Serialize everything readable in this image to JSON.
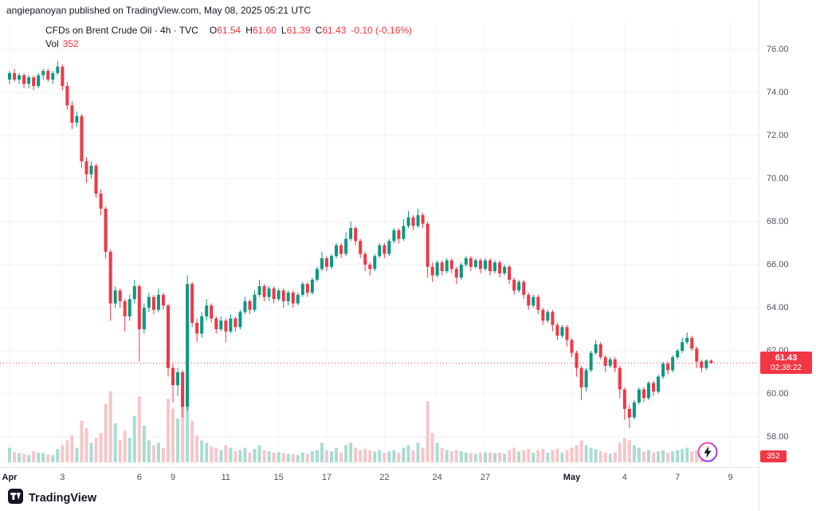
{
  "attribution": "angiepanoyan published on TradingView.com, May 08, 2025 05:21 UTC",
  "legend": {
    "title": "CFDs on Brent Crude Oil · 4h · TVC",
    "o_label": "O",
    "o": "61.54",
    "h_label": "H",
    "h": "61.60",
    "l_label": "L",
    "l": "61.39",
    "c_label": "C",
    "c": "61.43",
    "change": "-0.10 (-0.16%)",
    "vol_label": "Vol",
    "vol_value": "352"
  },
  "price_axis": {
    "labels": [
      "76.00",
      "74.00",
      "72.00",
      "70.00",
      "68.00",
      "66.00",
      "64.00",
      "62.00",
      "60.00",
      "58.00"
    ],
    "last_price": "61.43",
    "countdown": "02:38:22",
    "volume_badge": "352"
  },
  "time_axis": {
    "labels": [
      {
        "text": "Apr",
        "index": 0,
        "bold": true
      },
      {
        "text": "3",
        "index": 11,
        "bold": false
      },
      {
        "text": "6",
        "index": 27,
        "bold": false
      },
      {
        "text": "9",
        "index": 34,
        "bold": false
      },
      {
        "text": "11",
        "index": 45,
        "bold": false
      },
      {
        "text": "15",
        "index": 56,
        "bold": false
      },
      {
        "text": "17",
        "index": 66,
        "bold": false
      },
      {
        "text": "22",
        "index": 78,
        "bold": false
      },
      {
        "text": "24",
        "index": 89,
        "bold": false
      },
      {
        "text": "27",
        "index": 99,
        "bold": false
      },
      {
        "text": "May",
        "index": 117,
        "bold": true
      },
      {
        "text": "4",
        "index": 128,
        "bold": false
      },
      {
        "text": "7",
        "index": 139,
        "bold": false
      },
      {
        "text": "9",
        "index": 150,
        "bold": false
      }
    ]
  },
  "footer": {
    "brand": "TradingView"
  },
  "colors": {
    "up": "#089981",
    "down": "#F23645",
    "vol_up": "#aadcd3",
    "vol_down": "#f6c6ca",
    "grid": "#eef1f6",
    "grid_v": "#f3f5f9",
    "axis_text": "#50535e",
    "text": "#131722",
    "badge_red": "#F23645"
  },
  "chart_data": {
    "type": "candlestick",
    "symbol": "CFDs on Brent Crude Oil",
    "interval": "4h",
    "exchange": "TVC",
    "title": "CFDs on Brent Crude Oil · 4h · TVC",
    "ylim": [
      57.0,
      76.8
    ],
    "price_gridlines": [
      58,
      60,
      62,
      64,
      66,
      68,
      70,
      72,
      74,
      76
    ],
    "last_price": 61.43,
    "last_ohlc": {
      "o": 61.54,
      "h": 61.6,
      "l": 61.39,
      "c": 61.43
    },
    "change": -0.1,
    "change_pct": -0.16,
    "last_volume": 352,
    "vol_max": 3000,
    "candles_format": [
      "open",
      "high",
      "low",
      "close",
      "volume"
    ],
    "candles": [
      [
        74.6,
        75.0,
        74.4,
        74.9,
        600
      ],
      [
        74.9,
        75.1,
        74.5,
        74.6,
        420
      ],
      [
        74.6,
        74.9,
        74.4,
        74.8,
        380
      ],
      [
        74.8,
        74.9,
        74.2,
        74.4,
        350
      ],
      [
        74.4,
        74.8,
        74.2,
        74.7,
        300
      ],
      [
        74.7,
        74.8,
        74.1,
        74.3,
        450
      ],
      [
        74.3,
        74.9,
        74.2,
        74.8,
        400
      ],
      [
        74.8,
        75.1,
        74.6,
        75.0,
        380
      ],
      [
        75.0,
        75.1,
        74.5,
        74.6,
        320
      ],
      [
        74.6,
        75.0,
        74.4,
        74.9,
        300
      ],
      [
        74.9,
        75.45,
        74.8,
        75.2,
        550
      ],
      [
        75.2,
        75.3,
        74.1,
        74.3,
        700
      ],
      [
        74.3,
        74.5,
        73.2,
        73.4,
        900
      ],
      [
        73.4,
        73.6,
        72.3,
        72.6,
        1100
      ],
      [
        72.6,
        73.1,
        72.4,
        72.9,
        600
      ],
      [
        72.9,
        73.0,
        70.5,
        70.8,
        1700
      ],
      [
        70.8,
        71.0,
        69.8,
        70.2,
        1400
      ],
      [
        70.2,
        70.8,
        70.0,
        70.6,
        800
      ],
      [
        70.6,
        70.7,
        69.1,
        69.3,
        1000
      ],
      [
        69.3,
        69.5,
        68.3,
        68.6,
        1200
      ],
      [
        68.6,
        68.7,
        66.3,
        66.6,
        2400
      ],
      [
        66.6,
        66.7,
        63.4,
        64.2,
        2900
      ],
      [
        64.2,
        65.0,
        64.0,
        64.8,
        1600
      ],
      [
        64.8,
        64.9,
        64.0,
        64.3,
        900
      ],
      [
        64.3,
        64.4,
        62.9,
        63.6,
        1300
      ],
      [
        63.6,
        64.6,
        63.4,
        64.4,
        1000
      ],
      [
        64.4,
        65.3,
        64.2,
        65.0,
        1900
      ],
      [
        65.0,
        65.1,
        61.5,
        63.0,
        2700
      ],
      [
        63.0,
        64.2,
        62.8,
        64.0,
        1500
      ],
      [
        64.0,
        64.7,
        63.8,
        64.5,
        900
      ],
      [
        64.5,
        64.6,
        63.7,
        63.9,
        700
      ],
      [
        63.9,
        64.9,
        63.8,
        64.6,
        800
      ],
      [
        64.6,
        64.7,
        63.9,
        64.1,
        600
      ],
      [
        64.1,
        64.2,
        60.8,
        61.2,
        2600
      ],
      [
        61.2,
        61.4,
        59.6,
        60.4,
        2200
      ],
      [
        60.4,
        61.2,
        59.9,
        61.0,
        1800
      ],
      [
        61.0,
        61.1,
        58.9,
        59.4,
        2500
      ],
      [
        59.4,
        65.5,
        59.2,
        65.1,
        3000
      ],
      [
        65.1,
        65.2,
        63.1,
        63.3,
        1700
      ],
      [
        63.3,
        63.5,
        62.4,
        62.8,
        1100
      ],
      [
        62.8,
        63.8,
        62.6,
        63.6,
        900
      ],
      [
        63.6,
        64.4,
        63.4,
        64.1,
        800
      ],
      [
        64.1,
        64.2,
        63.3,
        63.5,
        650
      ],
      [
        63.5,
        63.6,
        62.8,
        63.0,
        600
      ],
      [
        63.0,
        63.6,
        62.9,
        63.4,
        500
      ],
      [
        63.4,
        63.5,
        62.4,
        62.9,
        700
      ],
      [
        62.9,
        63.7,
        62.8,
        63.5,
        600
      ],
      [
        63.5,
        63.6,
        62.9,
        63.1,
        450
      ],
      [
        63.1,
        63.9,
        63.0,
        63.8,
        500
      ],
      [
        63.8,
        64.5,
        63.7,
        64.3,
        600
      ],
      [
        64.3,
        64.4,
        63.7,
        63.9,
        400
      ],
      [
        63.9,
        64.8,
        63.8,
        64.6,
        550
      ],
      [
        64.6,
        65.3,
        64.5,
        65.0,
        700
      ],
      [
        65.0,
        65.1,
        64.3,
        64.5,
        500
      ],
      [
        64.5,
        65.0,
        64.3,
        64.9,
        450
      ],
      [
        64.9,
        65.0,
        64.2,
        64.4,
        400
      ],
      [
        64.4,
        64.9,
        64.3,
        64.8,
        420
      ],
      [
        64.8,
        64.9,
        64.0,
        64.3,
        380
      ],
      [
        64.3,
        64.8,
        64.1,
        64.7,
        350
      ],
      [
        64.7,
        64.8,
        64.0,
        64.2,
        330
      ],
      [
        64.2,
        64.7,
        64.1,
        64.6,
        300
      ],
      [
        64.6,
        65.2,
        64.5,
        65.1,
        400
      ],
      [
        65.1,
        65.2,
        64.5,
        64.7,
        350
      ],
      [
        64.7,
        65.4,
        64.6,
        65.3,
        450
      ],
      [
        65.3,
        65.9,
        65.2,
        65.8,
        500
      ],
      [
        65.8,
        66.6,
        65.7,
        66.3,
        800
      ],
      [
        66.3,
        66.4,
        65.7,
        65.9,
        500
      ],
      [
        65.9,
        66.5,
        65.8,
        66.4,
        450
      ],
      [
        66.4,
        67.0,
        66.3,
        66.9,
        600
      ],
      [
        66.9,
        67.0,
        66.3,
        66.5,
        400
      ],
      [
        66.5,
        67.5,
        66.4,
        67.2,
        700
      ],
      [
        67.2,
        68.0,
        67.1,
        67.7,
        800
      ],
      [
        67.7,
        67.8,
        66.9,
        67.1,
        600
      ],
      [
        67.1,
        67.2,
        66.3,
        66.5,
        500
      ],
      [
        66.5,
        66.6,
        65.7,
        66.0,
        550
      ],
      [
        66.0,
        66.1,
        65.5,
        65.8,
        500
      ],
      [
        65.8,
        66.5,
        65.7,
        66.4,
        450
      ],
      [
        66.4,
        67.0,
        66.3,
        66.9,
        500
      ],
      [
        66.9,
        67.0,
        66.3,
        66.5,
        400
      ],
      [
        66.5,
        67.2,
        66.4,
        67.1,
        450
      ],
      [
        67.1,
        67.7,
        67.0,
        67.6,
        500
      ],
      [
        67.6,
        67.7,
        67.0,
        67.2,
        400
      ],
      [
        67.2,
        68.1,
        67.1,
        67.8,
        600
      ],
      [
        67.8,
        68.5,
        67.7,
        68.2,
        700
      ],
      [
        68.2,
        68.3,
        67.6,
        67.8,
        500
      ],
      [
        67.8,
        68.6,
        67.7,
        68.3,
        800
      ],
      [
        68.3,
        68.4,
        67.7,
        67.9,
        600
      ],
      [
        67.9,
        68.0,
        65.4,
        65.9,
        2500
      ],
      [
        65.9,
        66.1,
        65.2,
        65.5,
        1200
      ],
      [
        65.5,
        66.2,
        65.4,
        66.1,
        800
      ],
      [
        66.1,
        66.2,
        65.5,
        65.7,
        600
      ],
      [
        65.7,
        66.3,
        65.6,
        66.2,
        500
      ],
      [
        66.2,
        66.3,
        65.6,
        65.8,
        450
      ],
      [
        65.8,
        65.9,
        65.1,
        65.4,
        500
      ],
      [
        65.4,
        66.1,
        65.3,
        66.0,
        450
      ],
      [
        66.0,
        66.4,
        65.9,
        66.3,
        400
      ],
      [
        66.3,
        66.4,
        65.7,
        65.9,
        380
      ],
      [
        65.9,
        66.3,
        65.8,
        66.2,
        350
      ],
      [
        66.2,
        66.3,
        65.6,
        65.8,
        400
      ],
      [
        65.8,
        66.3,
        65.7,
        66.2,
        420
      ],
      [
        66.2,
        66.3,
        65.5,
        65.7,
        400
      ],
      [
        65.7,
        66.2,
        65.6,
        66.1,
        380
      ],
      [
        66.1,
        66.2,
        65.4,
        65.6,
        400
      ],
      [
        65.6,
        66.0,
        65.5,
        65.9,
        350
      ],
      [
        65.9,
        66.0,
        65.1,
        65.3,
        500
      ],
      [
        65.3,
        65.4,
        64.6,
        64.8,
        600
      ],
      [
        64.8,
        65.3,
        64.7,
        65.2,
        450
      ],
      [
        65.2,
        65.3,
        64.4,
        64.6,
        500
      ],
      [
        64.6,
        64.7,
        63.9,
        64.1,
        550
      ],
      [
        64.1,
        64.6,
        64.0,
        64.5,
        400
      ],
      [
        64.5,
        64.6,
        63.7,
        63.9,
        500
      ],
      [
        63.9,
        64.0,
        63.2,
        63.4,
        550
      ],
      [
        63.4,
        63.9,
        63.3,
        63.8,
        400
      ],
      [
        63.8,
        63.9,
        62.9,
        63.2,
        500
      ],
      [
        63.2,
        63.3,
        62.5,
        62.7,
        550
      ],
      [
        62.7,
        63.2,
        62.6,
        63.1,
        400
      ],
      [
        63.1,
        63.2,
        62.2,
        62.5,
        500
      ],
      [
        62.5,
        62.6,
        61.7,
        61.9,
        600
      ],
      [
        61.9,
        62.0,
        60.8,
        61.2,
        700
      ],
      [
        61.2,
        61.3,
        59.7,
        60.3,
        900
      ],
      [
        60.3,
        61.2,
        60.1,
        61.1,
        700
      ],
      [
        61.1,
        62.0,
        61.0,
        61.9,
        600
      ],
      [
        61.9,
        62.5,
        61.8,
        62.3,
        550
      ],
      [
        62.3,
        62.4,
        61.6,
        61.7,
        450
      ],
      [
        61.7,
        61.8,
        61.0,
        61.3,
        400
      ],
      [
        61.3,
        61.7,
        61.2,
        61.6,
        350
      ],
      [
        61.6,
        61.7,
        61.0,
        61.2,
        400
      ],
      [
        61.2,
        61.3,
        59.8,
        60.2,
        800
      ],
      [
        60.2,
        60.3,
        58.8,
        59.3,
        1000
      ],
      [
        59.3,
        59.5,
        58.4,
        58.9,
        900
      ],
      [
        58.9,
        59.7,
        58.8,
        59.6,
        700
      ],
      [
        59.6,
        60.3,
        59.5,
        60.2,
        600
      ],
      [
        60.2,
        60.3,
        59.6,
        59.8,
        450
      ],
      [
        59.8,
        60.6,
        59.7,
        60.5,
        500
      ],
      [
        60.5,
        60.6,
        59.9,
        60.1,
        400
      ],
      [
        60.1,
        60.9,
        60.0,
        60.8,
        450
      ],
      [
        60.8,
        61.5,
        60.7,
        61.4,
        500
      ],
      [
        61.4,
        61.5,
        60.9,
        61.1,
        400
      ],
      [
        61.1,
        61.8,
        61.0,
        61.7,
        450
      ],
      [
        61.7,
        62.1,
        61.6,
        62.0,
        500
      ],
      [
        62.0,
        62.6,
        61.9,
        62.4,
        550
      ],
      [
        62.4,
        62.85,
        62.3,
        62.6,
        600
      ],
      [
        62.6,
        62.7,
        62.0,
        62.1,
        450
      ],
      [
        62.1,
        62.2,
        61.2,
        61.5,
        500
      ],
      [
        61.5,
        61.6,
        61.0,
        61.2,
        400
      ],
      [
        61.2,
        61.6,
        61.1,
        61.54,
        380
      ],
      [
        61.54,
        61.6,
        61.39,
        61.43,
        352
      ]
    ]
  }
}
